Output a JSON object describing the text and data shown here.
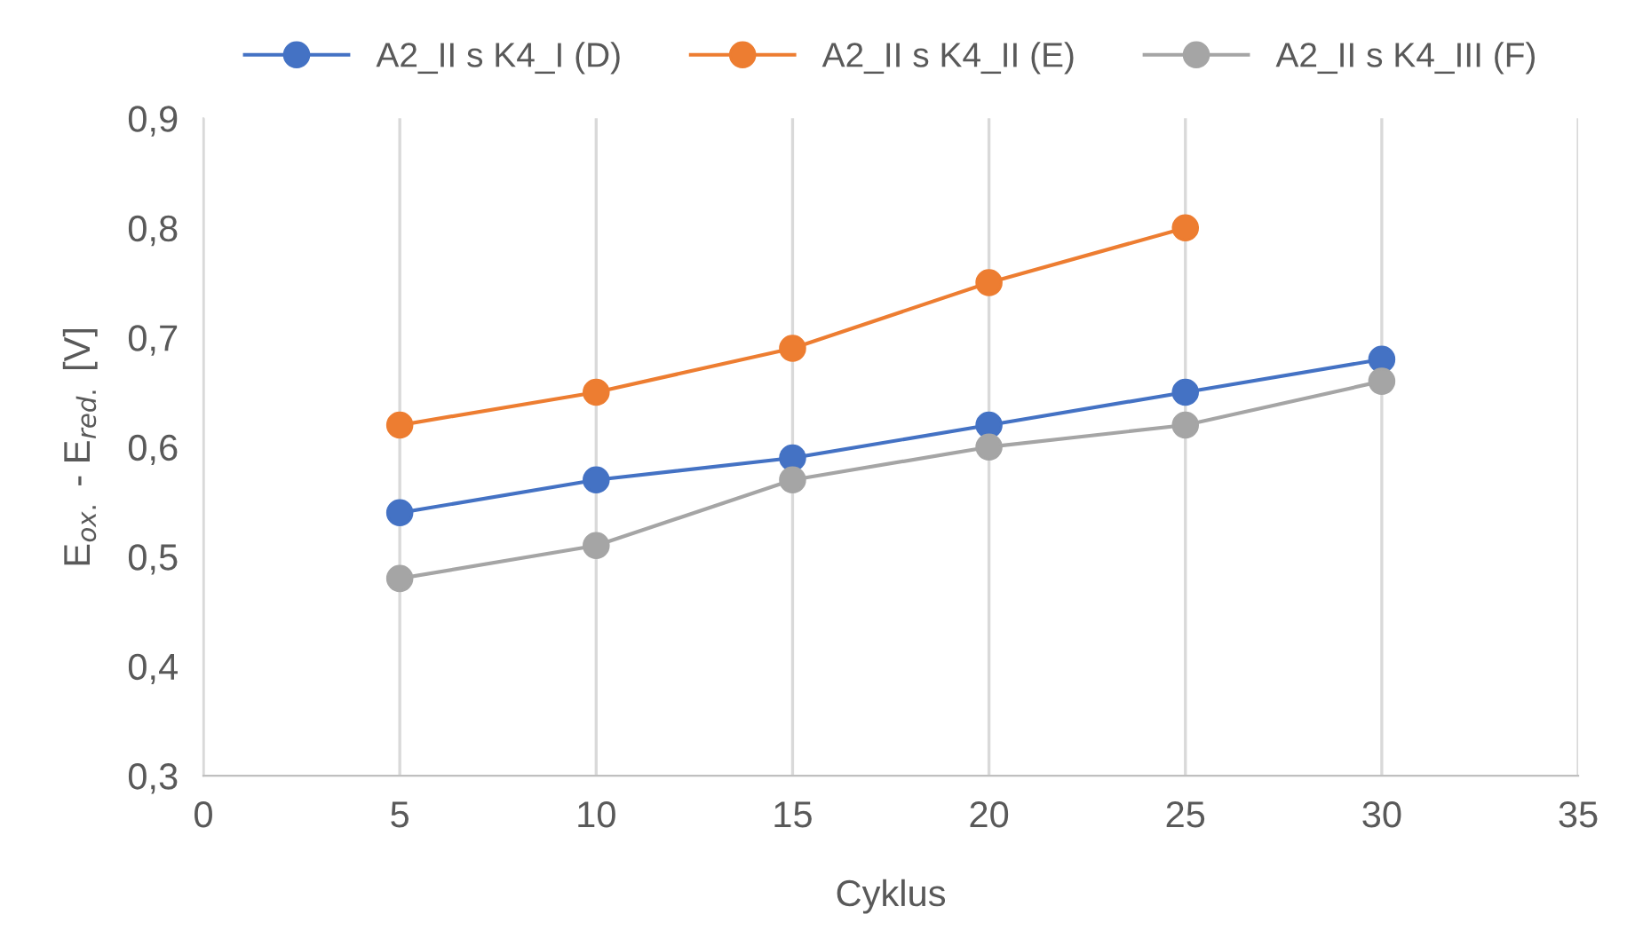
{
  "chart_data": {
    "type": "line",
    "xlabel": "Cyklus",
    "ylabel": "E$_{ox.}$ - E$_{red.}$ [V]",
    "x": [
      5,
      10,
      15,
      20,
      25,
      30
    ],
    "series": [
      {
        "name": "A2_II s K4_I (D)",
        "color": "#4472c4",
        "values": [
          0.54,
          0.57,
          0.59,
          0.62,
          0.65,
          0.68
        ]
      },
      {
        "name": "A2_II s K4_II (E)",
        "color": "#ed7d31",
        "x": [
          5,
          10,
          15,
          20,
          25
        ],
        "values": [
          0.62,
          0.65,
          0.69,
          0.75,
          0.8
        ]
      },
      {
        "name": "A2_II s K4_III (F)",
        "color": "#a5a5a5",
        "values": [
          0.48,
          0.51,
          0.57,
          0.6,
          0.62,
          0.66
        ]
      }
    ],
    "xlim": [
      0,
      35
    ],
    "xticks": [
      0,
      5,
      10,
      15,
      20,
      25,
      30,
      35
    ],
    "ylim": [
      0.3,
      0.9
    ],
    "yticks": [
      {
        "value": 0.3,
        "label": "0,3"
      },
      {
        "value": 0.4,
        "label": "0,4"
      },
      {
        "value": 0.5,
        "label": "0,5"
      },
      {
        "value": 0.6,
        "label": "0,6"
      },
      {
        "value": 0.7,
        "label": "0,7"
      },
      {
        "value": 0.8,
        "label": "0,8"
      },
      {
        "value": 0.9,
        "label": "0,9"
      }
    ],
    "grid": "x",
    "legend": "top",
    "marker": "circle",
    "line_style": "solid"
  }
}
